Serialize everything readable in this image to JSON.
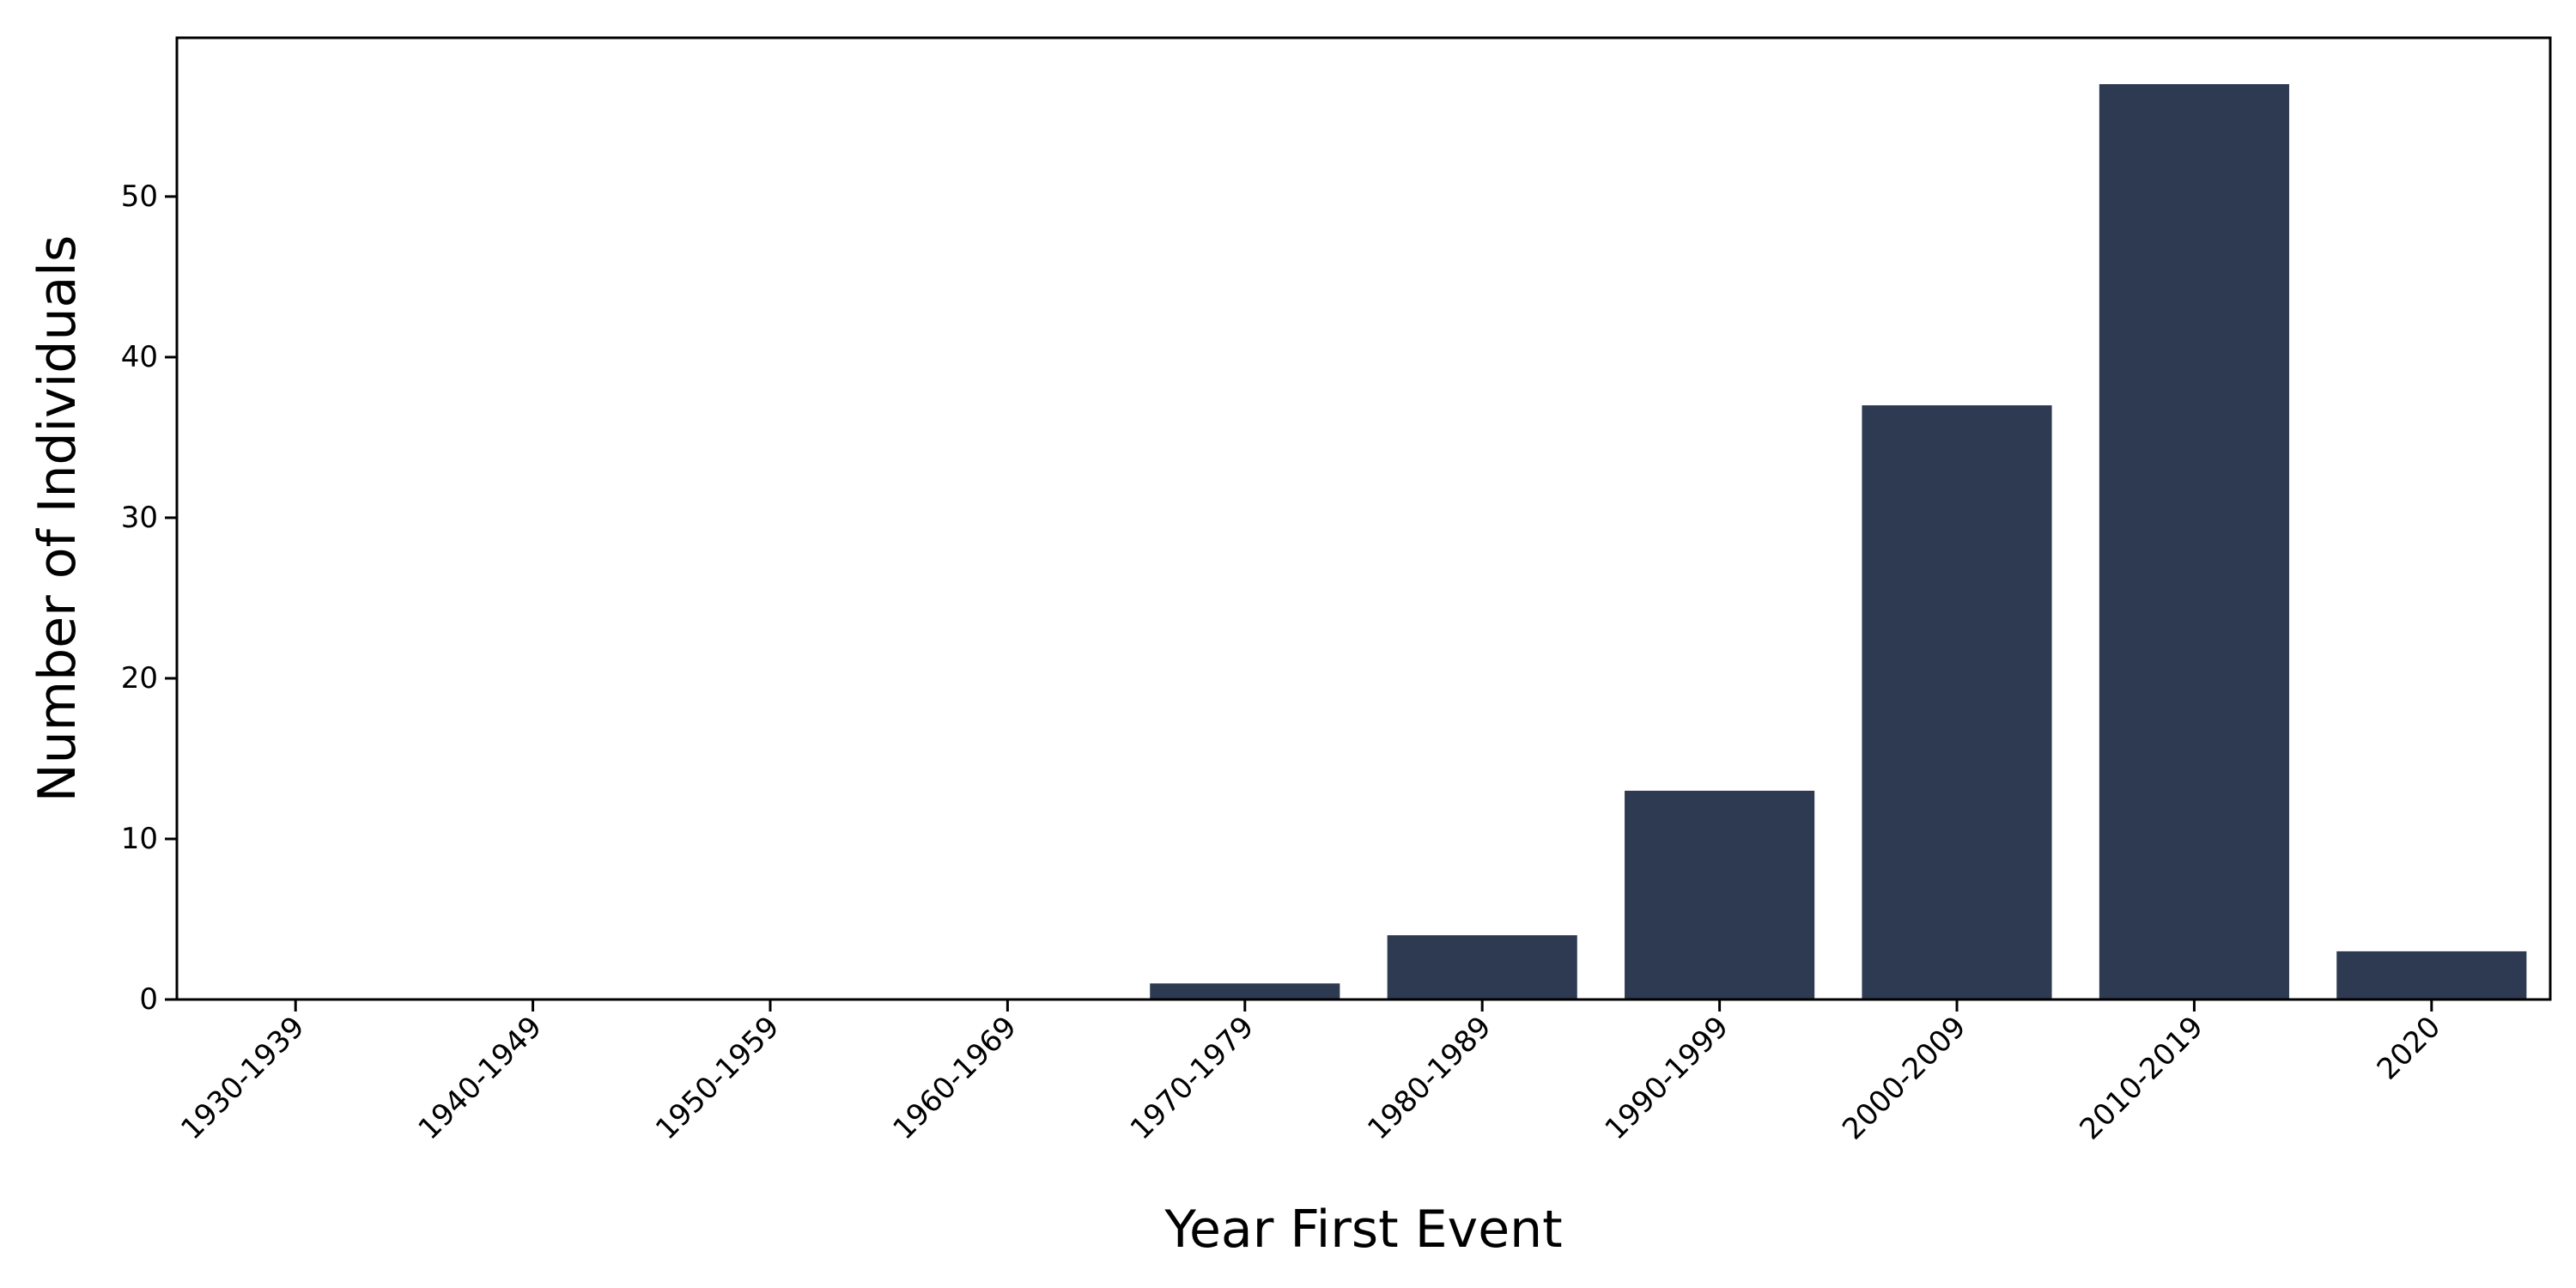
{
  "chart_data": {
    "type": "bar",
    "categories": [
      "1930-1939",
      "1940-1949",
      "1950-1959",
      "1960-1969",
      "1970-1979",
      "1980-1989",
      "1990-1999",
      "2000-2009",
      "2010-2019",
      "2020"
    ],
    "values": [
      0,
      0,
      0,
      0,
      1,
      4,
      13,
      37,
      57,
      3
    ],
    "xlabel": "Year First Event",
    "ylabel": "Number of Individuals",
    "ylim": [
      0,
      60
    ],
    "yticks": [
      0,
      10,
      20,
      30,
      40,
      50
    ],
    "grid": false,
    "bar_color": "#2d3a51"
  }
}
